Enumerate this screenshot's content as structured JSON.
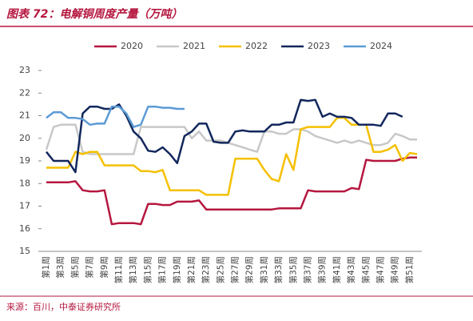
{
  "chart_data": {
    "type": "line",
    "title": "图表 72：电解铜周度产量（万吨）",
    "source": "来源：百川，中泰证券研究所",
    "categories": [
      "第1周",
      null,
      "第3周",
      null,
      "第5周",
      null,
      "第7周",
      null,
      "第9周",
      null,
      "第11周",
      null,
      "第13周",
      null,
      "第15周",
      null,
      "第17周",
      null,
      "第19周",
      null,
      "第21周",
      null,
      "第23周",
      null,
      "第25周",
      null,
      "第27周",
      null,
      "第29周",
      null,
      "第31周",
      null,
      "第33周",
      null,
      "第35周",
      null,
      "第37周",
      null,
      "第39周",
      null,
      "第41周",
      null,
      "第43周",
      null,
      "第45周",
      null,
      "第47周",
      null,
      "第49周",
      null,
      "第51周",
      null
    ],
    "ylim": [
      15,
      23
    ],
    "yticks": [
      15,
      16,
      17,
      18,
      19,
      20,
      21,
      22,
      23
    ],
    "legend": "top",
    "series": [
      {
        "name": "2020",
        "color": "#b5173f",
        "values": [
          18.05,
          18.05,
          18.05,
          18.05,
          18.1,
          17.7,
          17.65,
          17.65,
          17.7,
          16.2,
          16.25,
          16.25,
          16.25,
          16.2,
          17.1,
          17.1,
          17.05,
          17.05,
          17.2,
          17.2,
          17.2,
          17.25,
          16.85,
          16.85,
          16.85,
          16.85,
          16.85,
          16.85,
          16.85,
          16.85,
          16.85,
          16.85,
          16.9,
          16.9,
          16.9,
          16.9,
          17.7,
          17.65,
          17.65,
          17.65,
          17.65,
          17.65,
          17.8,
          17.75,
          19.05,
          19.0,
          19.0,
          19.0,
          19.0,
          19.1,
          19.15,
          19.15
        ]
      },
      {
        "name": "2021",
        "color": "#c8c8c8",
        "values": [
          19.5,
          20.5,
          20.6,
          20.6,
          20.6,
          19.4,
          19.3,
          19.3,
          19.3,
          19.3,
          19.3,
          19.3,
          19.3,
          20.5,
          20.5,
          20.5,
          20.5,
          20.5,
          20.5,
          20.5,
          20.0,
          20.3,
          19.9,
          19.9,
          19.9,
          19.8,
          19.7,
          19.6,
          19.5,
          19.4,
          20.3,
          20.3,
          20.2,
          20.2,
          20.4,
          20.4,
          20.3,
          20.1,
          20.0,
          19.9,
          19.8,
          19.9,
          19.8,
          19.9,
          19.8,
          19.7,
          19.7,
          19.8,
          20.2,
          20.1,
          19.95,
          19.95
        ]
      },
      {
        "name": "2022",
        "color": "#f5c000",
        "values": [
          18.7,
          18.7,
          18.7,
          18.7,
          19.4,
          19.3,
          19.4,
          19.4,
          18.8,
          18.8,
          18.8,
          18.8,
          18.8,
          18.55,
          18.55,
          18.5,
          18.6,
          17.7,
          17.7,
          17.7,
          17.7,
          17.7,
          17.5,
          17.5,
          17.5,
          17.5,
          19.1,
          19.1,
          19.1,
          19.1,
          18.6,
          18.2,
          18.1,
          19.3,
          18.6,
          20.4,
          20.5,
          20.5,
          20.5,
          20.5,
          20.9,
          20.9,
          20.6,
          20.6,
          20.6,
          19.4,
          19.4,
          19.5,
          19.7,
          19.0,
          19.35,
          19.3
        ]
      },
      {
        "name": "2023",
        "color": "#12275c",
        "values": [
          19.4,
          19.0,
          19.0,
          19.0,
          18.5,
          21.1,
          21.4,
          21.4,
          21.3,
          21.3,
          21.5,
          21.0,
          20.3,
          20.0,
          19.45,
          19.4,
          19.6,
          19.3,
          18.9,
          20.1,
          20.3,
          20.65,
          20.65,
          19.85,
          19.8,
          19.8,
          20.3,
          20.35,
          20.3,
          20.3,
          20.3,
          20.6,
          20.6,
          20.7,
          20.7,
          21.7,
          21.65,
          21.7,
          20.95,
          21.1,
          20.95,
          20.95,
          20.9,
          20.6,
          20.6,
          20.6,
          20.55,
          21.1,
          21.1,
          20.95,
          null,
          null
        ]
      },
      {
        "name": "2024",
        "color": "#5b9bd5",
        "values": [
          20.9,
          21.15,
          21.15,
          20.9,
          20.9,
          20.85,
          20.6,
          20.65,
          20.65,
          21.4,
          21.4,
          21.1,
          20.5,
          20.6,
          21.4,
          21.4,
          21.35,
          21.35,
          21.3,
          21.3,
          null,
          null,
          null,
          null,
          null,
          null,
          null,
          null,
          null,
          null,
          null,
          null,
          null,
          null,
          null,
          null,
          null,
          null,
          null,
          null,
          null,
          null,
          null,
          null,
          null,
          null,
          null,
          null,
          null,
          null,
          null,
          null
        ]
      }
    ]
  }
}
